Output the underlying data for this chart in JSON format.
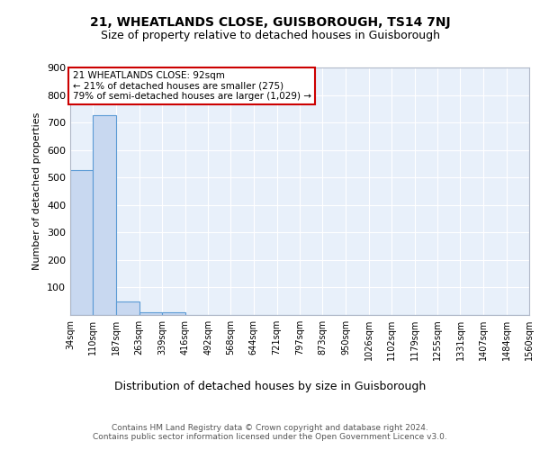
{
  "title1": "21, WHEATLANDS CLOSE, GUISBOROUGH, TS14 7NJ",
  "title2": "Size of property relative to detached houses in Guisborough",
  "xlabel": "Distribution of detached houses by size in Guisborough",
  "ylabel": "Number of detached properties",
  "bin_edges": [
    34,
    110,
    187,
    263,
    339,
    416,
    492,
    568,
    644,
    721,
    797,
    873,
    950,
    1026,
    1102,
    1179,
    1255,
    1331,
    1407,
    1484,
    1560
  ],
  "bar_heights": [
    527,
    728,
    50,
    10,
    10,
    0,
    0,
    0,
    0,
    0,
    0,
    0,
    0,
    0,
    0,
    0,
    0,
    0,
    0,
    0
  ],
  "bar_color": "#c8d8f0",
  "bar_edge_color": "#5b9bd5",
  "background_color": "#e8f0fa",
  "grid_color": "#ffffff",
  "annotation_text": "21 WHEATLANDS CLOSE: 92sqm\n← 21% of detached houses are smaller (275)\n79% of semi-detached houses are larger (1,029) →",
  "annotation_box_color": "#ffffff",
  "annotation_box_edge_color": "#cc0000",
  "footnote": "Contains HM Land Registry data © Crown copyright and database right 2024.\nContains public sector information licensed under the Open Government Licence v3.0.",
  "ylim": [
    0,
    900
  ],
  "yticks": [
    0,
    100,
    200,
    300,
    400,
    500,
    600,
    700,
    800,
    900
  ]
}
